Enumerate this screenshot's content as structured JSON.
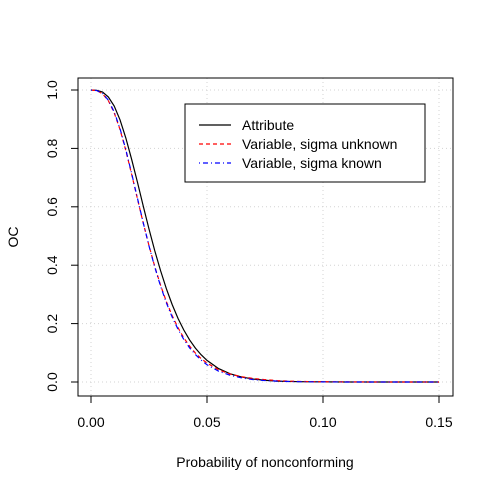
{
  "chart_data": {
    "type": "line",
    "title": "",
    "xlabel": "Probability of nonconforming",
    "ylabel": "OC",
    "xlim": [
      0,
      0.15
    ],
    "ylim": [
      0,
      1
    ],
    "x_ticks": [
      0.0,
      0.05,
      0.1,
      0.15
    ],
    "x_tick_labels": [
      "0.00",
      "0.05",
      "0.10",
      "0.15"
    ],
    "y_ticks": [
      0.0,
      0.2,
      0.4,
      0.6,
      0.8,
      1.0
    ],
    "y_tick_labels": [
      "0.0",
      "0.2",
      "0.4",
      "0.6",
      "0.8",
      "1.0"
    ],
    "grid": true,
    "legend_position": "top-right",
    "x": [
      0,
      0.0025,
      0.005,
      0.0075,
      0.01,
      0.0125,
      0.015,
      0.0175,
      0.02,
      0.0225,
      0.025,
      0.0275,
      0.03,
      0.0325,
      0.035,
      0.0375,
      0.04,
      0.0425,
      0.045,
      0.0475,
      0.05,
      0.055,
      0.06,
      0.065,
      0.07,
      0.075,
      0.08,
      0.085,
      0.09,
      0.095,
      0.1,
      0.11,
      0.12,
      0.13,
      0.14,
      0.15
    ],
    "series": [
      {
        "name": "Attribute",
        "color": "#000000",
        "dash": "solid",
        "values": [
          1.0,
          0.999,
          0.993,
          0.976,
          0.945,
          0.898,
          0.836,
          0.763,
          0.685,
          0.603,
          0.524,
          0.449,
          0.381,
          0.319,
          0.265,
          0.218,
          0.178,
          0.144,
          0.116,
          0.093,
          0.074,
          0.046,
          0.028,
          0.017,
          0.01,
          0.006,
          0.003,
          0.002,
          0.001,
          0.0006,
          0.0003,
          0.0001,
          0.0,
          0.0,
          0.0,
          0.0
        ]
      },
      {
        "name": "Variable, sigma unknown",
        "color": "#ff0000",
        "dash": "dashed",
        "values": [
          1.0,
          0.998,
          0.987,
          0.963,
          0.922,
          0.865,
          0.793,
          0.712,
          0.628,
          0.545,
          0.467,
          0.395,
          0.331,
          0.275,
          0.227,
          0.186,
          0.151,
          0.123,
          0.099,
          0.08,
          0.065,
          0.042,
          0.027,
          0.018,
          0.012,
          0.008,
          0.005,
          0.003,
          0.002,
          0.0013,
          0.0008,
          0.0003,
          0.0001,
          0.0,
          0.0,
          0.0
        ]
      },
      {
        "name": "Variable, sigma known",
        "color": "#0000ff",
        "dash": "dotdash",
        "values": [
          1.0,
          0.998,
          0.988,
          0.965,
          0.925,
          0.868,
          0.796,
          0.715,
          0.63,
          0.546,
          0.466,
          0.393,
          0.328,
          0.271,
          0.222,
          0.181,
          0.146,
          0.117,
          0.094,
          0.075,
          0.059,
          0.037,
          0.023,
          0.014,
          0.008,
          0.005,
          0.003,
          0.0017,
          0.001,
          0.0006,
          0.0003,
          0.0001,
          0.0,
          0.0,
          0.0,
          0.0
        ]
      }
    ]
  }
}
